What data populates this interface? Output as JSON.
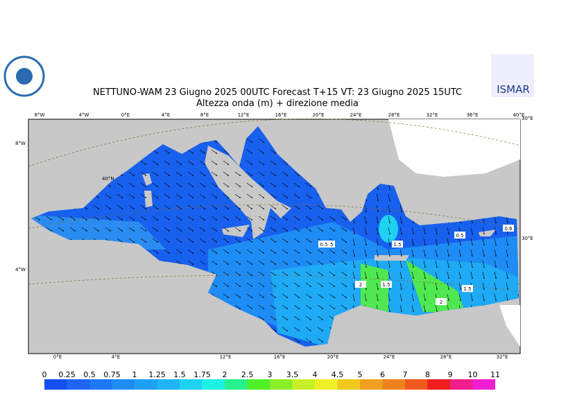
{
  "header": {
    "title": "NETTUNO-WAM 23   Giugno  2025 00UTC Forecast T+15 VT: 23   Giugno  2025 15UTC",
    "subtitle": "Altezza onda (m) + direzione media",
    "logo": "ISMAR"
  },
  "map": {
    "top_labels": [
      "8°W",
      "4°W",
      "0°E",
      "4°E",
      "8°E",
      "12°E",
      "16°E",
      "20°E",
      "24°E",
      "28°E",
      "32°E",
      "36°E",
      "40°E"
    ],
    "bottom_labels": [
      "0°E",
      "4°E",
      "12°E",
      "16°E",
      "20°E",
      "24°E",
      "28°E",
      "32°E"
    ],
    "left_labels": [
      "8°W",
      "4°W"
    ],
    "right_labels": [
      "30°E",
      "30°E"
    ],
    "lat_label": "40°N",
    "contour_labels": [
      "0.5",
      "1.5",
      "0.5",
      "0.5",
      "0.6",
      "2",
      "1.5",
      "2",
      "1.5"
    ]
  },
  "colorbar": {
    "labels": [
      "0",
      "0.25",
      "0.5",
      "0.75",
      "1",
      "1.25",
      "1.5",
      "1.75",
      "2",
      "2.5",
      "3",
      "3.5",
      "4",
      "4.5",
      "5",
      "6",
      "7",
      "8",
      "9",
      "10",
      "11"
    ],
    "colors": [
      "#1450f0",
      "#1e64f5",
      "#1e78f5",
      "#1e8cf5",
      "#1ea0f5",
      "#1eb4f5",
      "#1ed2f0",
      "#1ef0e6",
      "#28f08c",
      "#50f028",
      "#8cf028",
      "#c8f028",
      "#f0f028",
      "#f0c81e",
      "#f0a01e",
      "#f0821e",
      "#f05a1e",
      "#f01e1e",
      "#f01e8c",
      "#f01ed2"
    ]
  }
}
